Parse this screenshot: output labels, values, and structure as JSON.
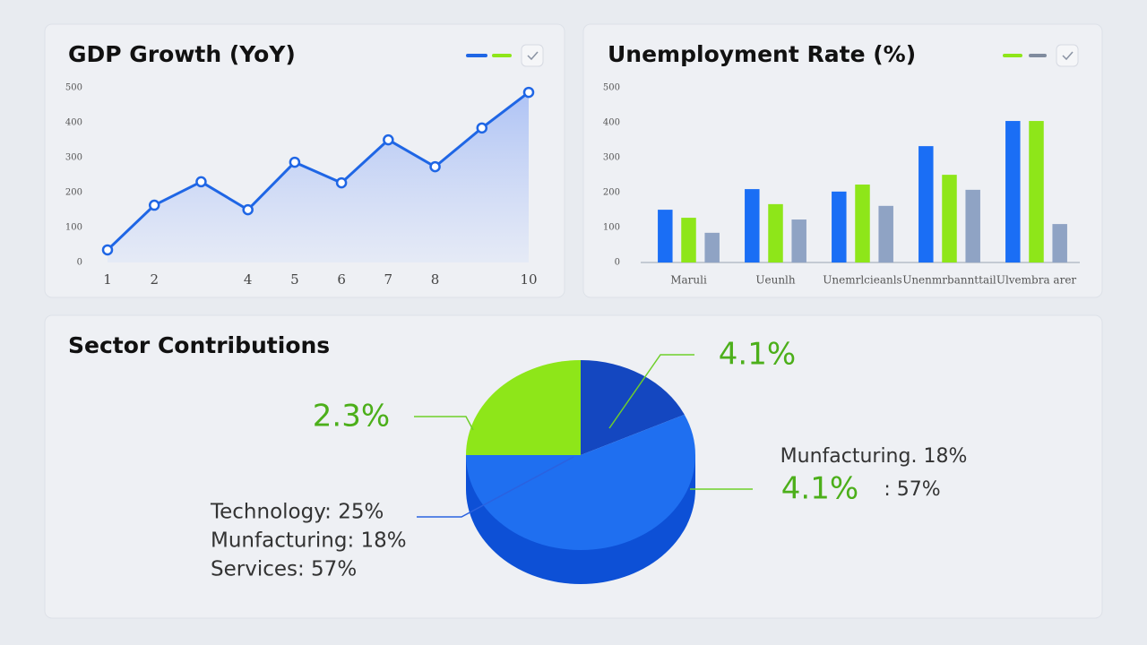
{
  "chart_data": [
    {
      "type": "line",
      "title": "GDP Growth (YoY)",
      "x": [
        1,
        2,
        3,
        4,
        5,
        6,
        7,
        8,
        9,
        10
      ],
      "values": [
        36,
        164,
        231,
        151,
        287,
        228,
        351,
        274,
        385,
        487
      ],
      "color": "#1f66e5",
      "xlim": [
        1,
        10
      ],
      "xticks": [
        1,
        2,
        4,
        5,
        6,
        7,
        8,
        10
      ],
      "ylim": [
        0,
        500
      ],
      "yticks": [
        0,
        100,
        200,
        300,
        400,
        500
      ],
      "grid": false
    },
    {
      "type": "bar",
      "title": "Unemployment Rate (%)",
      "categories": [
        "Maruli",
        "Ueunlh",
        "Unemrlcieanls",
        "Unenmrbannttail",
        "Ulvembra arer"
      ],
      "series": [
        {
          "color": "#1a6ef5",
          "values": [
            151,
            210,
            203,
            333,
            405
          ]
        },
        {
          "color": "#8ee619",
          "values": [
            128,
            167,
            223,
            251,
            405
          ]
        },
        {
          "color": "#8fa3c4",
          "values": [
            85,
            123,
            162,
            208,
            110
          ]
        }
      ],
      "ylim": [
        0,
        500
      ],
      "yticks": [
        0,
        100,
        200,
        300,
        400,
        500
      ],
      "grid": false
    },
    {
      "type": "pie",
      "title": "Sector Contributions",
      "labels": [
        "Technology: 25%",
        "Munfacturing: 18%",
        "Services: 57%"
      ],
      "values": [
        25,
        18,
        57
      ],
      "colors": [
        "#8ee619",
        "#1447c0",
        "#1f6ff0"
      ],
      "annotations": [
        "2.3%",
        "4.1%",
        "Munfacturing. 18%",
        "4.1%",
        ": 57%"
      ]
    }
  ]
}
